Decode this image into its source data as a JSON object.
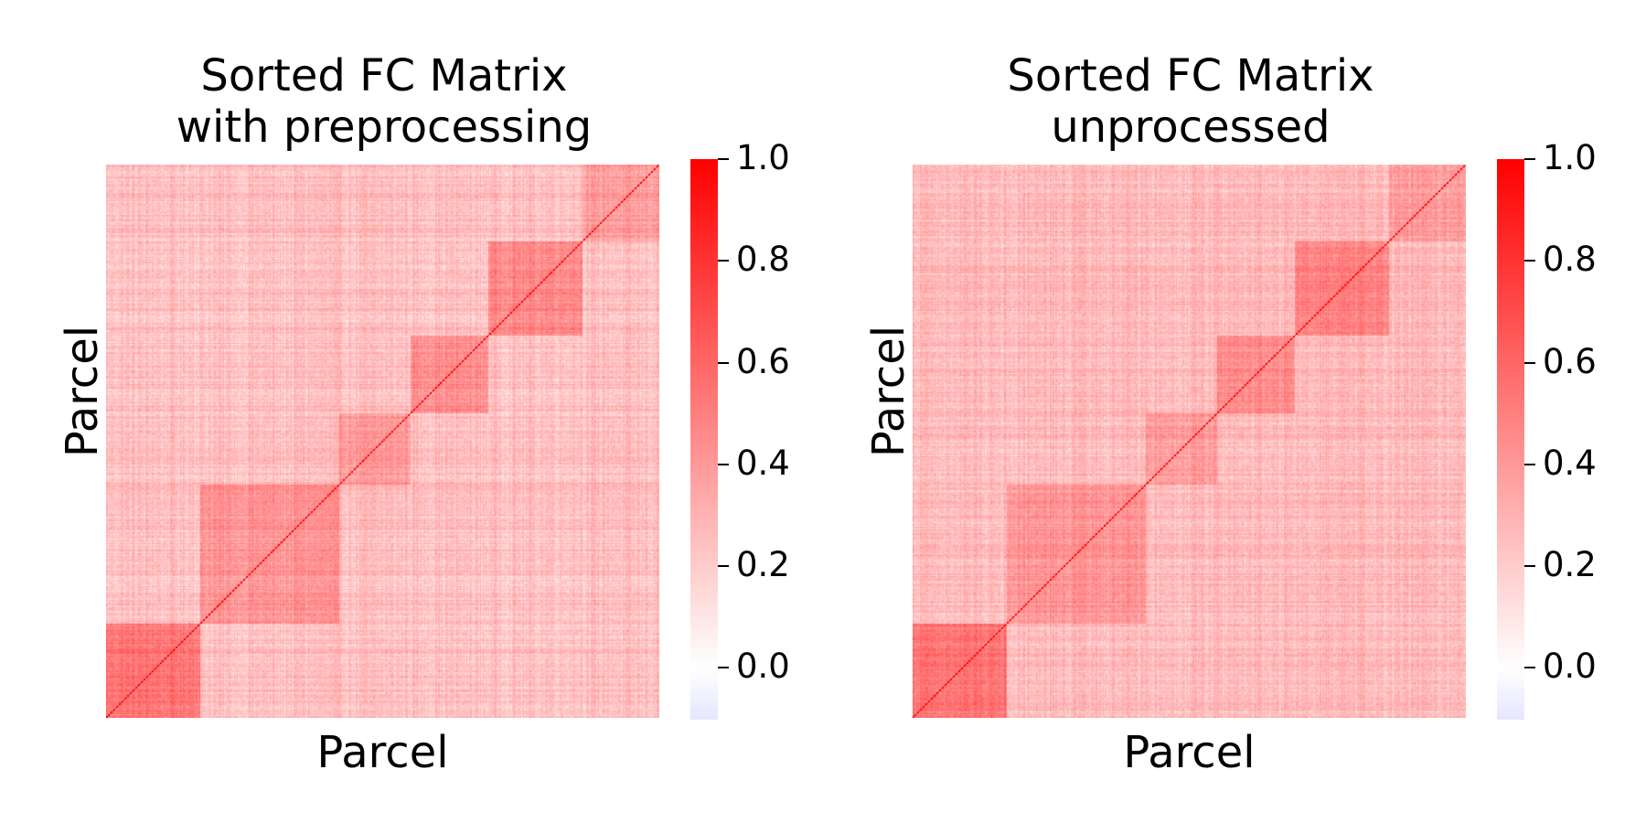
{
  "chart_data": [
    {
      "type": "heatmap",
      "title": "Sorted FC Matrix\nwith preprocessing",
      "xlabel": "Parcel",
      "ylabel": "Parcel",
      "colorbar": {
        "range": [
          -0.1,
          1.0
        ],
        "ticks": [
          "1.0",
          "0.8",
          "0.6",
          "0.4",
          "0.2",
          "0.0"
        ],
        "tick_values": [
          1.0,
          0.8,
          0.6,
          0.4,
          0.2,
          0.0
        ],
        "colors": {
          "low": "#e6e6ff",
          "zero": "#ffffff",
          "high": "#ff0000"
        }
      },
      "matrix": {
        "description_of_values": "symmetric correlation matrix, diagonal = 1.0",
        "n_parcels": 400,
        "typical_offdiag": 0.25,
        "block_boundaries_fraction": [
          0,
          0.17,
          0.42,
          0.55,
          0.69,
          0.86,
          1.0
        ],
        "block_within_mean": [
          0.55,
          0.42,
          0.4,
          0.45,
          0.48,
          0.38
        ]
      }
    },
    {
      "type": "heatmap",
      "title": "Sorted FC Matrix\nunprocessed",
      "xlabel": "Parcel",
      "ylabel": "Parcel",
      "colorbar": {
        "range": [
          -0.1,
          1.0
        ],
        "ticks": [
          "1.0",
          "0.8",
          "0.6",
          "0.4",
          "0.2",
          "0.0"
        ],
        "tick_values": [
          1.0,
          0.8,
          0.6,
          0.4,
          0.2,
          0.0
        ],
        "colors": {
          "low": "#e6e6ff",
          "zero": "#ffffff",
          "high": "#ff0000"
        }
      },
      "matrix": {
        "description_of_values": "symmetric correlation matrix, diagonal = 1.0",
        "n_parcels": 400,
        "typical_offdiag": 0.27,
        "block_boundaries_fraction": [
          0,
          0.17,
          0.42,
          0.55,
          0.69,
          0.86,
          1.0
        ],
        "block_within_mean": [
          0.55,
          0.42,
          0.4,
          0.45,
          0.48,
          0.38
        ]
      }
    }
  ]
}
